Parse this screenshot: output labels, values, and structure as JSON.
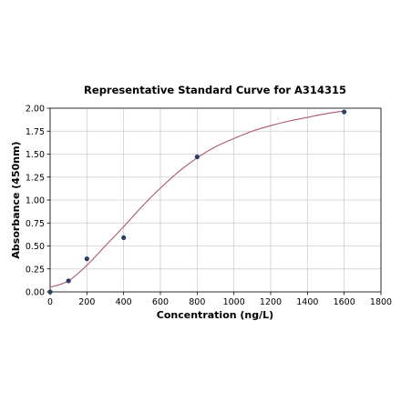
{
  "chart_data": {
    "type": "scatter",
    "title": "Representative Standard Curve for A314315",
    "xlabel": "Concentration (ng/L)",
    "ylabel": "Absorbance (450nm)",
    "xlim": [
      0,
      1800
    ],
    "ylim": [
      0,
      2.0
    ],
    "xticks": [
      0,
      200,
      400,
      600,
      800,
      1000,
      1200,
      1400,
      1600,
      1800
    ],
    "yticks": [
      0.0,
      0.25,
      0.5,
      0.75,
      1.0,
      1.25,
      1.5,
      1.75,
      2.0
    ],
    "grid": true,
    "series": [
      {
        "kind": "points",
        "x": [
          0,
          100,
          200,
          400,
          800,
          1600
        ],
        "y": [
          0.0,
          0.12,
          0.36,
          0.59,
          1.47,
          1.96
        ],
        "color": "#2d3e63"
      },
      {
        "kind": "fit-curve",
        "x": [
          0,
          100,
          200,
          300,
          400,
          500,
          600,
          700,
          800,
          900,
          1000,
          1100,
          1200,
          1300,
          1400,
          1500,
          1600
        ],
        "y": [
          0.05,
          0.12,
          0.29,
          0.5,
          0.71,
          0.93,
          1.13,
          1.31,
          1.46,
          1.58,
          1.67,
          1.75,
          1.81,
          1.86,
          1.9,
          1.94,
          1.97
        ],
        "color": "#b0566e"
      }
    ]
  }
}
